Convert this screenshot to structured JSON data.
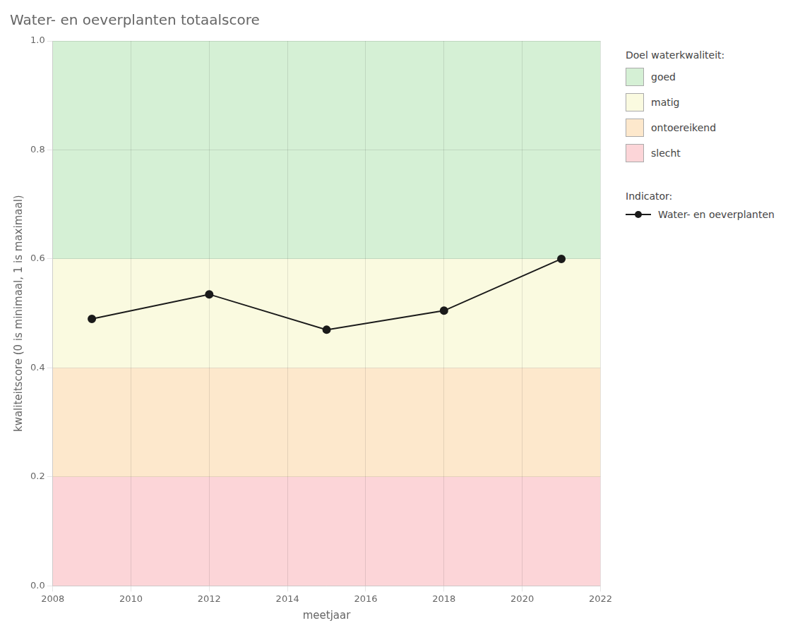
{
  "chart_data": {
    "type": "line",
    "title": "Water- en oeverplanten totaalscore",
    "x_label": "meetjaar",
    "y_label": "kwaliteitscore (0 is minimaal, 1 is maximaal)",
    "x": [
      2009,
      2012,
      2015,
      2018,
      2021
    ],
    "series": [
      {
        "name": "Water- en oeverplanten",
        "color": "#1a1a1a",
        "values": [
          0.49,
          0.535,
          0.47,
          0.505,
          0.6
        ],
        "marker": "circle",
        "line_style": "solid"
      }
    ],
    "xlim": [
      2008,
      2022
    ],
    "xticks": [
      2008,
      2010,
      2012,
      2014,
      2016,
      2018,
      2020,
      2022
    ],
    "ylim": [
      0.0,
      1.0
    ],
    "yticks": [
      {
        "value": 0.0,
        "label": "0.0"
      },
      0.2,
      0.4,
      0.6,
      0.8,
      {
        "value": 1.0,
        "label": "1.0"
      }
    ],
    "grid": true,
    "legend": "right",
    "zones_title": "Doel waterkwaliteit:",
    "series_title": "Indicator:",
    "zones": [
      {
        "name": "goed",
        "from": 0.6,
        "to": 1.0,
        "color": "#d5f0d5"
      },
      {
        "name": "matig",
        "from": 0.4,
        "to": 0.6,
        "color": "#fafae0"
      },
      {
        "name": "ontoereikend",
        "from": 0.2,
        "to": 0.4,
        "color": "#fde8cc"
      },
      {
        "name": "slecht",
        "from": 0.0,
        "to": 0.2,
        "color": "#fcd5d8"
      }
    ]
  }
}
